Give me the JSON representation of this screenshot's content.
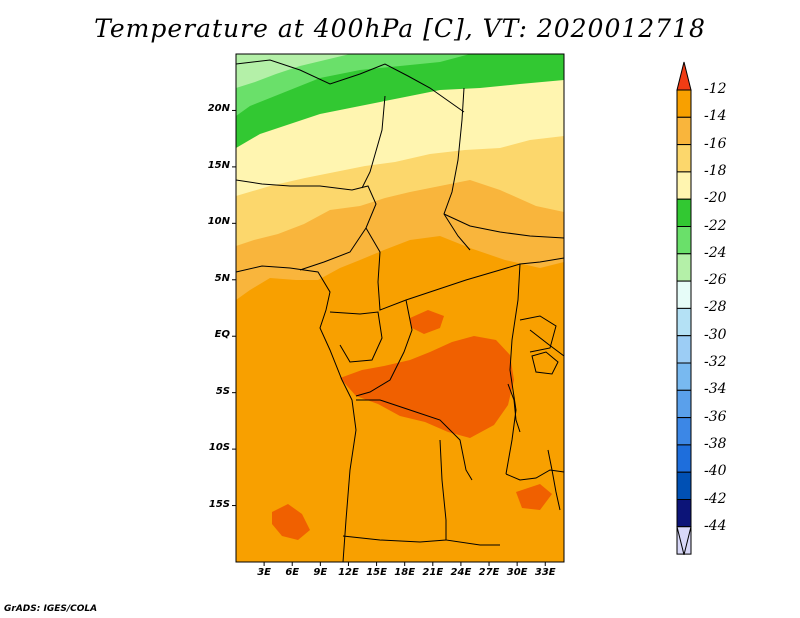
{
  "title": "Temperature at 400hPa [C], VT: 2020012718",
  "credit": "GrADS: IGES/COLA",
  "map": {
    "projection": "lat-lon",
    "lon_range": [
      0,
      35
    ],
    "lat_range": [
      -20,
      25
    ],
    "lat_ticks": [
      {
        "label": "20N",
        "value": 20
      },
      {
        "label": "15N",
        "value": 15
      },
      {
        "label": "10N",
        "value": 10
      },
      {
        "label": "5N",
        "value": 5
      },
      {
        "label": "EQ",
        "value": 0
      },
      {
        "label": "5S",
        "value": -5
      },
      {
        "label": "10S",
        "value": -10
      },
      {
        "label": "15S",
        "value": -15
      }
    ],
    "lon_ticks": [
      {
        "label": "3E",
        "value": 3
      },
      {
        "label": "6E",
        "value": 6
      },
      {
        "label": "9E",
        "value": 9
      },
      {
        "label": "12E",
        "value": 12
      },
      {
        "label": "15E",
        "value": 15
      },
      {
        "label": "18E",
        "value": 18
      },
      {
        "label": "21E",
        "value": 21
      },
      {
        "label": "24E",
        "value": 24
      },
      {
        "label": "27E",
        "value": 27
      },
      {
        "label": "30E",
        "value": 30
      },
      {
        "label": "33E",
        "value": 33
      }
    ]
  },
  "colorbar": {
    "levels": [
      "-12",
      "-14",
      "-16",
      "-18",
      "-20",
      "-22",
      "-24",
      "-26",
      "-28",
      "-30",
      "-32",
      "-34",
      "-36",
      "-38",
      "-40",
      "-42",
      "-44"
    ],
    "colors": [
      "#f06000",
      "#f8a000",
      "#f9b53c",
      "#fcd76c",
      "#fff5b0",
      "#32c832",
      "#6ae06a",
      "#b4f0a8",
      "#e6fcf8",
      "#b4e1f5",
      "#9ccdf5",
      "#78b9f0",
      "#5aa0eb",
      "#3c87e6",
      "#1e6edc",
      "#0050b4",
      "#0c1478",
      "#d8d8f8"
    ],
    "top_cap_color": "#f03c14",
    "bottom_cap_color": "#d8d8f8"
  }
}
